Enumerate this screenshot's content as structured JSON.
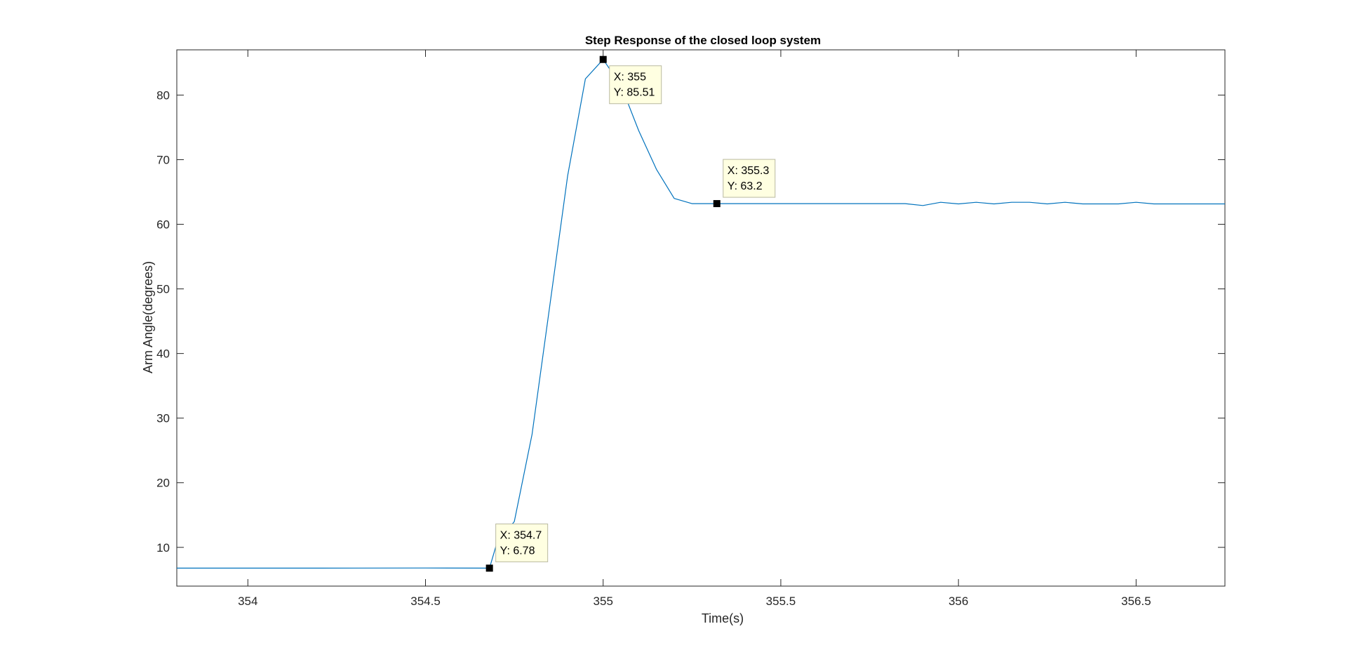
{
  "chart_data": {
    "type": "line",
    "title": "Step Response of the closed loop system",
    "xlabel": "Time(s)",
    "ylabel": "Arm Angle(degrees)",
    "xlim": [
      353.8,
      356.75
    ],
    "ylim": [
      4,
      87
    ],
    "xticks": [
      354,
      354.5,
      355,
      355.5,
      356,
      356.5
    ],
    "xtick_labels": [
      "354",
      "354.5",
      "355",
      "355.5",
      "356",
      "356.5"
    ],
    "yticks": [
      10,
      20,
      30,
      40,
      50,
      60,
      70,
      80
    ],
    "ytick_labels": [
      "10",
      "20",
      "30",
      "40",
      "50",
      "60",
      "70",
      "80"
    ],
    "grid": false,
    "line_color": "#0072BD",
    "series": [
      {
        "x": [
          353.8,
          354.2,
          354.5,
          354.68,
          354.7,
          354.75,
          354.8,
          354.85,
          354.9,
          354.95,
          355.0,
          355.05,
          355.1,
          355.15,
          355.2,
          355.25,
          355.3,
          355.35,
          355.4,
          355.45,
          355.5,
          355.55,
          355.6,
          355.65,
          355.7,
          355.75,
          355.8,
          355.85,
          355.9,
          355.95,
          356.0,
          356.05,
          356.1,
          356.15,
          356.2,
          356.25,
          356.3,
          356.35,
          356.4,
          356.45,
          356.5,
          356.55,
          356.6,
          356.65,
          356.7,
          356.75
        ],
        "y": [
          6.78,
          6.78,
          6.8,
          6.78,
          10.5,
          14.0,
          27.5,
          47.5,
          67.5,
          82.5,
          85.51,
          81.5,
          74.5,
          68.5,
          64.0,
          63.2,
          63.2,
          63.2,
          63.2,
          63.2,
          63.2,
          63.2,
          63.2,
          63.2,
          63.2,
          63.2,
          63.2,
          63.2,
          62.9,
          63.4,
          63.15,
          63.4,
          63.15,
          63.4,
          63.4,
          63.15,
          63.4,
          63.15,
          63.15,
          63.15,
          63.4,
          63.15,
          63.15,
          63.15,
          63.15,
          63.15
        ]
      }
    ],
    "datatips": [
      {
        "x": 354.68,
        "y": 6.78,
        "x_text": "X: 354.7",
        "y_text": "Y: 6.78",
        "placement": "above-right"
      },
      {
        "x": 355.0,
        "y": 85.51,
        "x_text": "X: 355",
        "y_text": "Y: 85.51",
        "placement": "below-right"
      },
      {
        "x": 355.32,
        "y": 63.2,
        "x_text": "X: 355.3",
        "y_text": "Y: 63.2",
        "placement": "above-right"
      }
    ]
  }
}
